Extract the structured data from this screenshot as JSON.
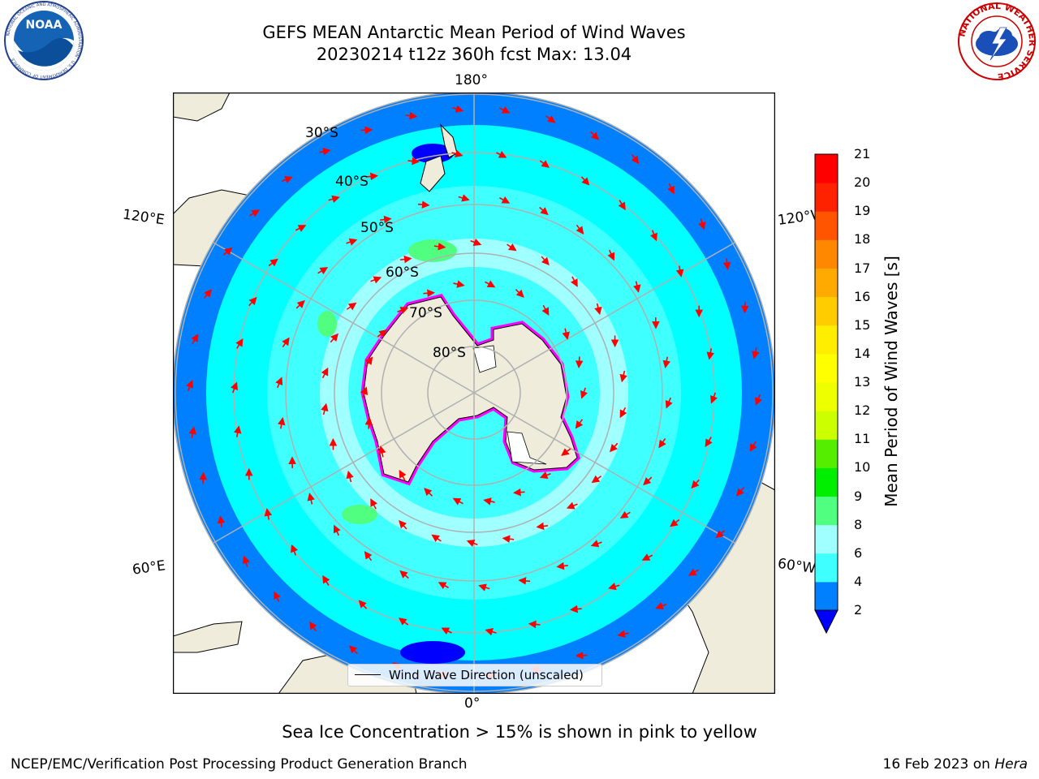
{
  "header": {
    "title_line1": "GEFS MEAN Antarctic Mean Period of Wind Waves",
    "title_line2": "20230214 t12z 360h fcst   Max: 13.04"
  },
  "logos": {
    "left": "NOAA",
    "left_ring": "NATIONAL OCEANIC AND ATMOSPHERIC ADMINISTRATION · U.S. DEPARTMENT OF COMMERCE",
    "right_ring": "NATIONAL WEATHER SERVICE"
  },
  "map": {
    "projection": "south polar stereographic",
    "lon_labels": {
      "top": "180°",
      "bottom": "0°",
      "left_upper": "120°E",
      "left_lower": "60°E",
      "right_upper": "120°W",
      "right_lower": "60°W"
    },
    "lat_labels": [
      "30°S",
      "40°S",
      "50°S",
      "60°S",
      "70°S",
      "80°S"
    ],
    "legend_label": "Wind Wave Direction (unscaled)",
    "arrow_color": "#ff0000",
    "land_color": "#efecdc",
    "ocean_colors": {
      "2-4": "#0080ff",
      "4-6": "#00ffff",
      "6-8": "#40ffff",
      "8-9": "#a0ffff",
      "9-10": "#50ff80",
      "10-11": "#00ee00"
    },
    "sea_ice_colors": [
      "#ff00ff",
      "#ff66cc",
      "#ffff00"
    ]
  },
  "colorbar": {
    "label": "Mean Period of Wind Waves [s]",
    "ticks": [
      "2",
      "4",
      "6",
      "8",
      "9",
      "10",
      "11",
      "12",
      "13",
      "14",
      "15",
      "16",
      "17",
      "18",
      "19",
      "20",
      "21"
    ],
    "colors": [
      "#0080ff",
      "#00ffff",
      "#40ffff",
      "#a0ffff",
      "#50ff80",
      "#00ee00",
      "#55ee00",
      "#ccff00",
      "#eeff00",
      "#ffff00",
      "#ffee00",
      "#ffcc00",
      "#ffaa00",
      "#ff8800",
      "#ff5500",
      "#ff2200",
      "#ff0000"
    ],
    "extend_color": "#0000ff"
  },
  "note": "Sea Ice Concentration > 15% is shown in pink to yellow",
  "footer": {
    "left": "NCEP/EMC/Verification Post Processing Product Generation Branch",
    "right_date": "16 Feb 2023 on ",
    "right_host": "Hera"
  }
}
